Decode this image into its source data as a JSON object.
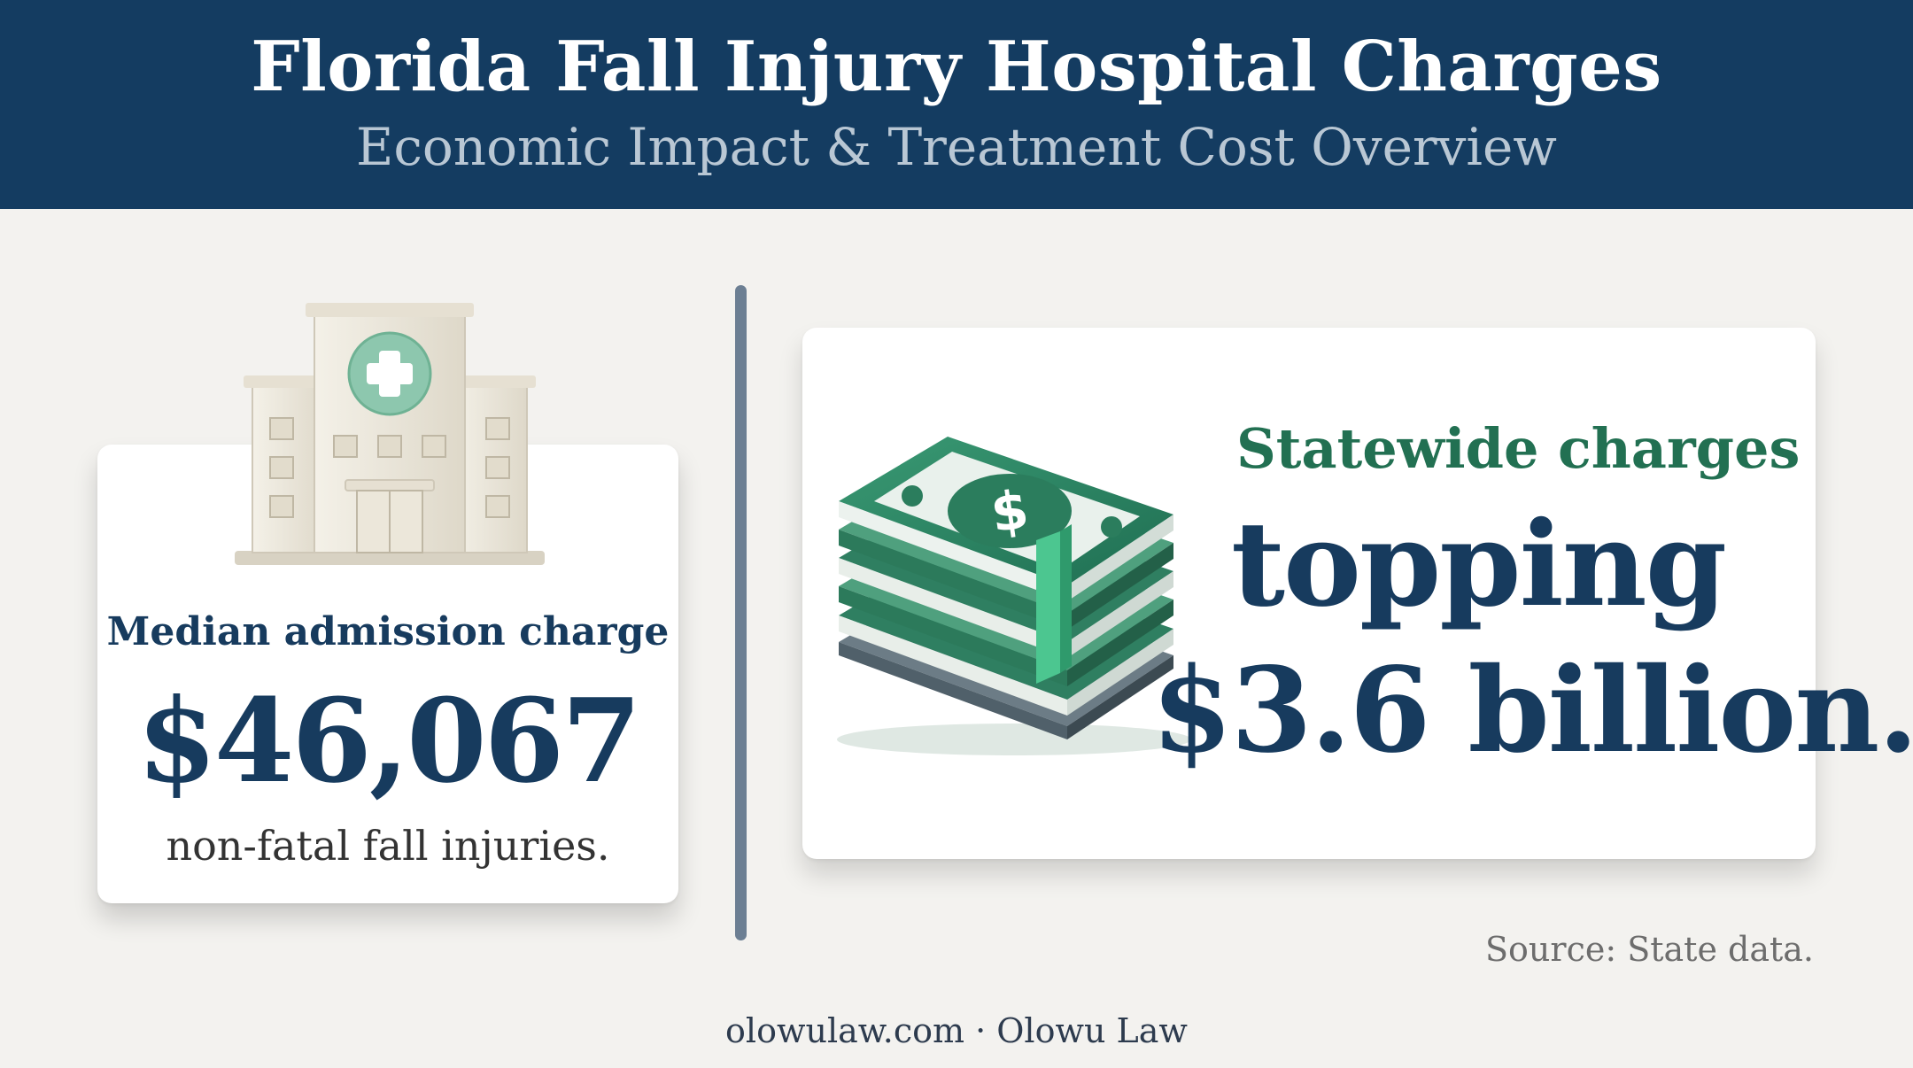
{
  "header": {
    "title": "Florida Fall Injury Hospital Charges",
    "subtitle": "Economic Impact & Treatment Cost Overview"
  },
  "left_stat": {
    "icon": "hospital-icon",
    "label": "Median admission charge",
    "value": "$46,067",
    "caption": "non-fatal fall injuries."
  },
  "right_stat": {
    "icon": "money-stack-icon",
    "label": "Statewide charges",
    "line1": "topping",
    "line2": "$3.6 billion."
  },
  "source": "Source: State data.",
  "footer": "olowulaw.com · Olowu Law",
  "colors": {
    "header_bg": "#143c61",
    "navy_text": "#173b5e",
    "green_accent": "#227052",
    "page_bg": "#f3f2ef",
    "divider": "#6c7f93"
  }
}
